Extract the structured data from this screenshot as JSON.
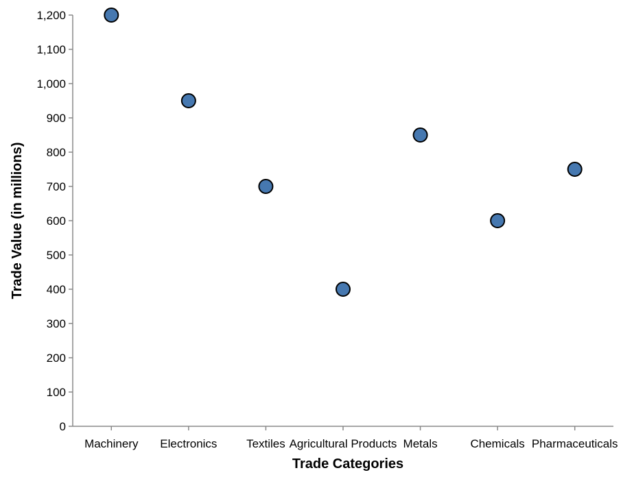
{
  "chart_data": {
    "type": "scatter",
    "title": "",
    "xlabel": "Trade Categories",
    "ylabel": "Trade Value (in millions)",
    "categories": [
      "Machinery",
      "Electronics",
      "Textiles",
      "Agricultural Products",
      "Metals",
      "Chemicals",
      "Pharmaceuticals"
    ],
    "values": [
      1200,
      950,
      700,
      400,
      850,
      600,
      750
    ],
    "ylim": [
      0,
      1200
    ],
    "y_ticks": [
      0,
      100,
      200,
      300,
      400,
      500,
      600,
      700,
      800,
      900,
      1000,
      1100,
      1200
    ],
    "y_tick_labels": [
      "0",
      "100",
      "200",
      "300",
      "400",
      "500",
      "600",
      "700",
      "800",
      "900",
      "1,000",
      "1,100",
      "1,200"
    ],
    "grid": false,
    "legend": "none",
    "point_color": "#4678b0"
  }
}
